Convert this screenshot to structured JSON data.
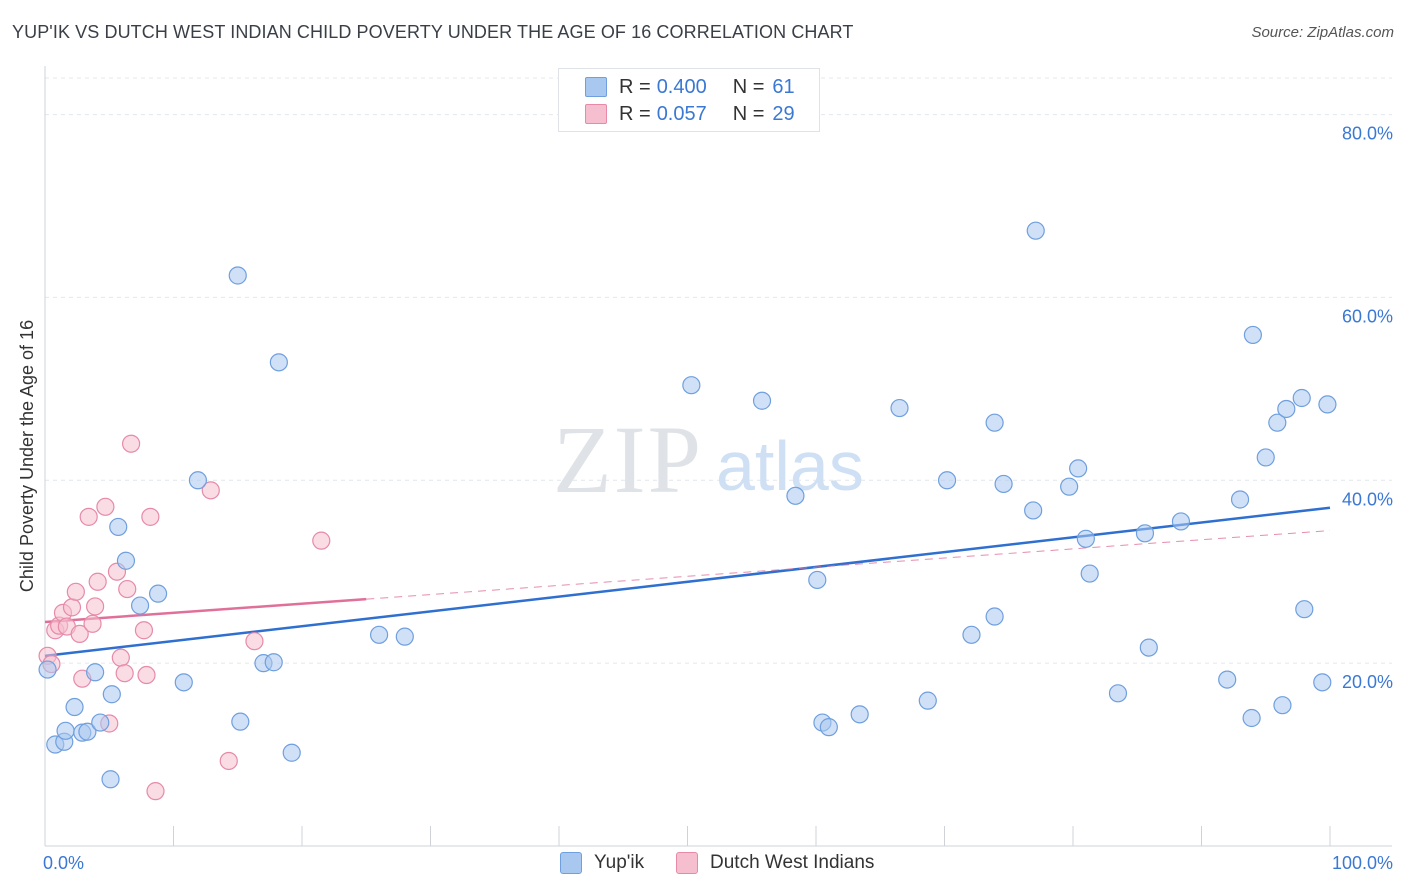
{
  "title": "YUP'IK VS DUTCH WEST INDIAN CHILD POVERTY UNDER THE AGE OF 16 CORRELATION CHART",
  "source": "Source: ZipAtlas.com",
  "watermark": {
    "zip": "ZIP",
    "atlas": "atlas"
  },
  "legend": {
    "rows": [
      {
        "r_label": "R =",
        "r_value": "0.400",
        "n_label": "N =",
        "n_value": "61",
        "color": "#a9c8f0",
        "edge": "#6f9fde"
      },
      {
        "r_label": "R =",
        "r_value": "0.057",
        "n_label": "N =",
        "n_value": "29",
        "color": "#f6bfd0",
        "edge": "#e68aa8"
      }
    ]
  },
  "bottom_legend": [
    {
      "label": "Yup'ik",
      "color": "#a9c8f0",
      "edge": "#6f9fde"
    },
    {
      "label": "Dutch West Indians",
      "color": "#f6bfd0",
      "edge": "#e68aa8"
    }
  ],
  "chart_data": {
    "type": "scatter",
    "title": "YUP'IK VS DUTCH WEST INDIAN CHILD POVERTY UNDER THE AGE OF 16 CORRELATION CHART",
    "xlabel": "",
    "ylabel": "Child Poverty Under the Age of 16",
    "xlim": [
      0,
      100
    ],
    "ylim": [
      0,
      84
    ],
    "x_tick_labels": [
      "0.0%",
      "100.0%"
    ],
    "y_tick_labels": [
      "20.0%",
      "40.0%",
      "60.0%",
      "80.0%"
    ],
    "y_ticks": [
      20,
      40,
      60,
      80
    ],
    "grid": true,
    "legend_position": "top-center",
    "series": [
      {
        "name": "Yup'ik",
        "color": "#6f9fde",
        "fill": "#a9c8f0",
        "trend_color": "#2f6fd0",
        "trend": {
          "x0": 0,
          "y0": 20.8,
          "x1": 100,
          "y1": 37.0
        },
        "points": [
          [
            0.2,
            19.3
          ],
          [
            0.8,
            11.1
          ],
          [
            1.5,
            11.4
          ],
          [
            1.6,
            12.6
          ],
          [
            2.3,
            15.2
          ],
          [
            2.9,
            12.4
          ],
          [
            3.3,
            12.5
          ],
          [
            3.9,
            19.0
          ],
          [
            4.3,
            13.5
          ],
          [
            5.2,
            16.6
          ],
          [
            5.7,
            34.9
          ],
          [
            6.3,
            31.2
          ],
          [
            5.1,
            7.3
          ],
          [
            7.4,
            26.3
          ],
          [
            8.8,
            27.6
          ],
          [
            10.8,
            17.9
          ],
          [
            11.9,
            40.0
          ],
          [
            15.0,
            62.4
          ],
          [
            15.2,
            13.6
          ],
          [
            17.0,
            20.0
          ],
          [
            17.8,
            20.1
          ],
          [
            18.2,
            52.9
          ],
          [
            19.2,
            10.2
          ],
          [
            26.0,
            23.1
          ],
          [
            28.0,
            22.9
          ],
          [
            50.3,
            50.4
          ],
          [
            55.8,
            48.7
          ],
          [
            58.4,
            38.3
          ],
          [
            60.1,
            29.1
          ],
          [
            60.5,
            13.5
          ],
          [
            61.0,
            13.0
          ],
          [
            63.4,
            14.4
          ],
          [
            66.5,
            47.9
          ],
          [
            68.7,
            15.9
          ],
          [
            70.2,
            40.0
          ],
          [
            72.1,
            23.1
          ],
          [
            73.9,
            46.3
          ],
          [
            73.9,
            25.1
          ],
          [
            74.6,
            39.6
          ],
          [
            76.9,
            36.7
          ],
          [
            77.1,
            67.3
          ],
          [
            79.7,
            39.3
          ],
          [
            80.4,
            41.3
          ],
          [
            81.0,
            33.6
          ],
          [
            81.3,
            29.8
          ],
          [
            83.5,
            16.7
          ],
          [
            85.6,
            34.2
          ],
          [
            85.9,
            21.7
          ],
          [
            88.4,
            35.5
          ],
          [
            92.0,
            18.2
          ],
          [
            93.0,
            37.9
          ],
          [
            93.9,
            14.0
          ],
          [
            94.0,
            55.9
          ],
          [
            95.0,
            42.5
          ],
          [
            95.9,
            46.3
          ],
          [
            96.6,
            47.8
          ],
          [
            96.3,
            15.4
          ],
          [
            97.8,
            49.0
          ],
          [
            98.0,
            25.9
          ],
          [
            99.4,
            17.9
          ],
          [
            99.8,
            48.3
          ]
        ]
      },
      {
        "name": "Dutch West Indians",
        "color": "#e68aa8",
        "fill": "#f6bfd0",
        "trend_color": "#e0709a",
        "trend": {
          "x0": 0,
          "y0": 24.5,
          "x1": 25,
          "y1": 27.0
        },
        "trend_extension": {
          "x0": 25,
          "y0": 27.0,
          "x1": 100,
          "y1": 34.5
        },
        "points": [
          [
            0.2,
            20.8
          ],
          [
            0.5,
            19.9
          ],
          [
            0.8,
            23.6
          ],
          [
            1.1,
            24.1
          ],
          [
            1.4,
            25.5
          ],
          [
            1.7,
            24.0
          ],
          [
            2.1,
            26.1
          ],
          [
            2.4,
            27.8
          ],
          [
            2.7,
            23.2
          ],
          [
            2.9,
            18.3
          ],
          [
            3.4,
            36.0
          ],
          [
            3.7,
            24.3
          ],
          [
            3.9,
            26.2
          ],
          [
            4.1,
            28.9
          ],
          [
            4.7,
            37.1
          ],
          [
            5.0,
            13.4
          ],
          [
            5.6,
            30.0
          ],
          [
            5.9,
            20.6
          ],
          [
            6.2,
            18.9
          ],
          [
            6.4,
            28.1
          ],
          [
            6.7,
            44.0
          ],
          [
            7.7,
            23.6
          ],
          [
            7.9,
            18.7
          ],
          [
            8.2,
            36.0
          ],
          [
            8.6,
            6.0
          ],
          [
            12.9,
            38.9
          ],
          [
            14.3,
            9.3
          ],
          [
            16.3,
            22.4
          ],
          [
            21.5,
            33.4
          ]
        ]
      }
    ]
  }
}
